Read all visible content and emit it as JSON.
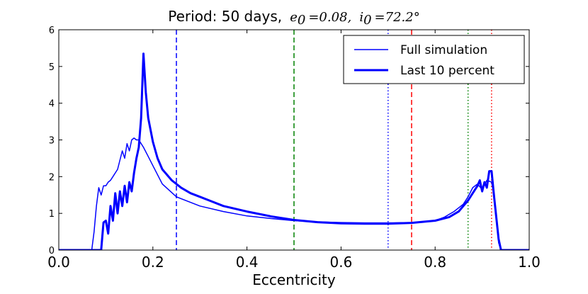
{
  "chart_data": {
    "type": "line",
    "title_prefix": "Period: 50 days,",
    "title_e_sym": "e",
    "title_e_sub": "0",
    "title_e_val": "=0.08,",
    "title_i_sym": "i",
    "title_i_sub": "0",
    "title_i_val": "=72.2°",
    "xlabel": "Eccentricity",
    "ylabel": "",
    "xlim": [
      0.0,
      1.0
    ],
    "ylim": [
      0,
      6
    ],
    "xticks": [
      "0.0",
      "0.2",
      "0.4",
      "0.6",
      "0.8",
      "1.0"
    ],
    "yticks": [
      "0",
      "1",
      "2",
      "3",
      "4",
      "5",
      "6"
    ],
    "legend_position": "top-right",
    "series": [
      {
        "name": "Full simulation",
        "color": "#0000ff",
        "style": "thin",
        "x": [
          0.0,
          0.07,
          0.075,
          0.08,
          0.085,
          0.09,
          0.095,
          0.1,
          0.105,
          0.11,
          0.115,
          0.12,
          0.125,
          0.13,
          0.135,
          0.14,
          0.145,
          0.15,
          0.155,
          0.16,
          0.165,
          0.17,
          0.175,
          0.18,
          0.19,
          0.2,
          0.22,
          0.25,
          0.3,
          0.35,
          0.4,
          0.45,
          0.5,
          0.55,
          0.6,
          0.65,
          0.7,
          0.75,
          0.8,
          0.82,
          0.84,
          0.86,
          0.87,
          0.88,
          0.89,
          0.9,
          0.91,
          0.92,
          0.925,
          0.93,
          0.935,
          0.94,
          1.0
        ],
        "y": [
          0,
          0,
          0.5,
          1.2,
          1.7,
          1.5,
          1.75,
          1.75,
          1.85,
          1.9,
          2.0,
          2.1,
          2.2,
          2.45,
          2.7,
          2.5,
          2.9,
          2.7,
          3.0,
          3.05,
          3.0,
          3.0,
          2.9,
          2.8,
          2.55,
          2.3,
          1.8,
          1.45,
          1.2,
          1.05,
          0.93,
          0.86,
          0.8,
          0.77,
          0.75,
          0.74,
          0.74,
          0.75,
          0.8,
          0.9,
          1.05,
          1.25,
          1.45,
          1.7,
          1.8,
          1.65,
          1.9,
          1.85,
          1.5,
          0.9,
          0.2,
          0,
          0
        ]
      },
      {
        "name": "Last 10 percent",
        "color": "#0000ff",
        "style": "thick",
        "x": [
          0.0,
          0.09,
          0.095,
          0.1,
          0.105,
          0.11,
          0.115,
          0.12,
          0.125,
          0.13,
          0.135,
          0.14,
          0.145,
          0.15,
          0.155,
          0.16,
          0.165,
          0.17,
          0.175,
          0.18,
          0.185,
          0.19,
          0.2,
          0.21,
          0.22,
          0.24,
          0.26,
          0.28,
          0.3,
          0.32,
          0.35,
          0.4,
          0.45,
          0.5,
          0.55,
          0.6,
          0.65,
          0.7,
          0.75,
          0.8,
          0.83,
          0.85,
          0.86,
          0.87,
          0.88,
          0.89,
          0.895,
          0.9,
          0.905,
          0.91,
          0.915,
          0.92,
          0.925,
          0.93,
          0.935,
          0.94,
          1.0
        ],
        "y": [
          0,
          0,
          0.75,
          0.8,
          0.45,
          1.2,
          0.8,
          1.55,
          1.0,
          1.6,
          1.2,
          1.75,
          1.3,
          1.85,
          1.6,
          2.1,
          2.5,
          2.8,
          3.6,
          5.35,
          4.3,
          3.6,
          2.95,
          2.5,
          2.2,
          1.9,
          1.7,
          1.55,
          1.45,
          1.35,
          1.2,
          1.05,
          0.92,
          0.82,
          0.76,
          0.73,
          0.72,
          0.72,
          0.74,
          0.8,
          0.9,
          1.05,
          1.2,
          1.35,
          1.55,
          1.75,
          1.9,
          1.6,
          1.85,
          1.7,
          2.15,
          2.15,
          1.5,
          0.9,
          0.3,
          0,
          0
        ]
      }
    ],
    "vlines": [
      {
        "x": 0.25,
        "color": "#0000ff",
        "dash": "dashed"
      },
      {
        "x": 0.5,
        "color": "#008000",
        "dash": "dashed"
      },
      {
        "x": 0.7,
        "color": "#0000ff",
        "dash": "dotted"
      },
      {
        "x": 0.75,
        "color": "#ff0000",
        "dash": "dashed"
      },
      {
        "x": 0.87,
        "color": "#008000",
        "dash": "dotted"
      },
      {
        "x": 0.92,
        "color": "#ff0000",
        "dash": "dotted"
      }
    ]
  }
}
